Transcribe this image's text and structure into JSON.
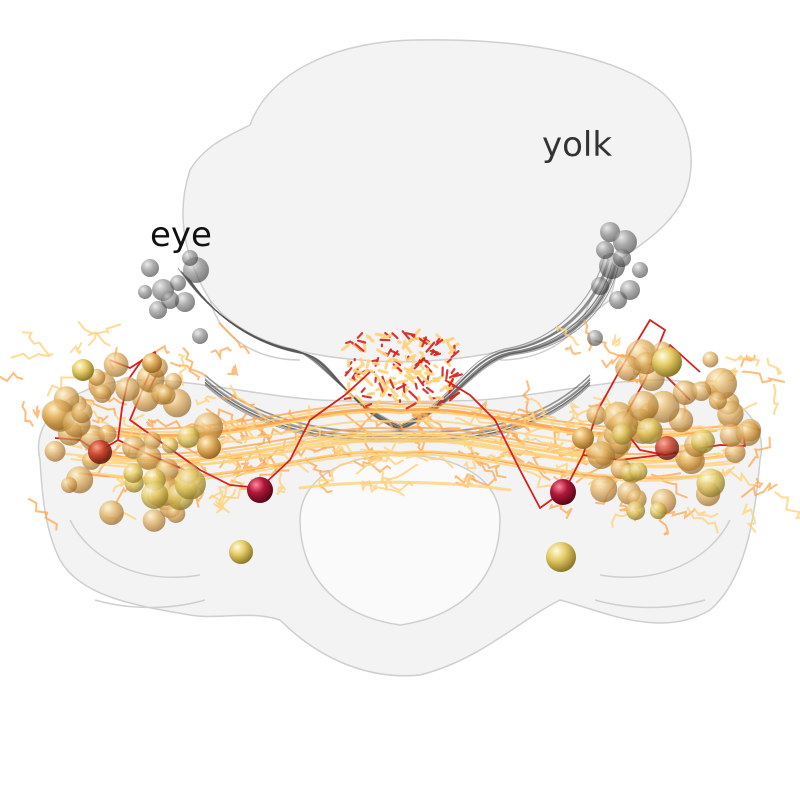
{
  "labels": {
    "eye": "eye",
    "yolk": "yolk"
  },
  "colors": {
    "background": "#ffffff",
    "tissue_fill": "#e9e9e9",
    "tissue_edge": "#d0d0d0",
    "label_eye": "#111111",
    "label_yolk": "#333333",
    "photoreceptor_soma": "#6a6a6a",
    "photoreceptor_axon": "#555555",
    "neuron_orange": "#ffa64d",
    "neuron_light": "#ffd27a",
    "neuron_red": "#d8201c",
    "soma_tan": "#d9a24a",
    "soma_yellow": "#e6cc66",
    "soma_crimson": "#b0183a"
  }
}
